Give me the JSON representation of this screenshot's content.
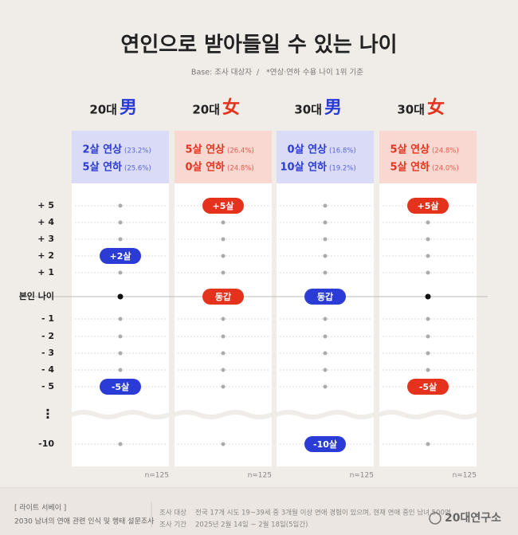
{
  "header": {
    "title": "연인으로 받아들일 수 있는 나이",
    "base": "Base: 조사 대상자",
    "note": "*연상·연하 수용 나이 1위 기준"
  },
  "rows": [
    {
      "value": 5,
      "label": "+ 5"
    },
    {
      "value": 4,
      "label": "+ 4"
    },
    {
      "value": 3,
      "label": "+ 3"
    },
    {
      "value": 2,
      "label": "+ 2"
    },
    {
      "value": 1,
      "label": "+ 1"
    },
    {
      "value": 0,
      "label": "본인 나이"
    },
    {
      "value": -1,
      "label": "- 1"
    },
    {
      "value": -2,
      "label": "- 2"
    },
    {
      "value": -3,
      "label": "- 3"
    },
    {
      "value": -4,
      "label": "- 4"
    },
    {
      "value": -5,
      "label": "- 5"
    },
    {
      "value": -10,
      "label": "-10"
    }
  ],
  "ellipsis": "⋮",
  "columns": [
    {
      "age": "20대",
      "gender": "男",
      "color": "#2b3bd6",
      "box": "#dadbf6",
      "older": "2살 연상",
      "older_pct": "(23.2%)",
      "younger": "5살 연하",
      "younger_pct": "(25.6%)",
      "badges": [
        {
          "value": 2,
          "label": "+2살"
        },
        {
          "value": -5,
          "label": "-5살"
        }
      ],
      "n": "n=125"
    },
    {
      "age": "20대",
      "gender": "女",
      "color": "#e5321d",
      "box": "#f8d8d1",
      "older": "5살 연상",
      "older_pct": "(26.4%)",
      "younger": "0살 연하",
      "younger_pct": "(24.8%)",
      "badges": [
        {
          "value": 5,
          "label": "+5살"
        },
        {
          "value": 0,
          "label": "동갑"
        }
      ],
      "n": "n=125"
    },
    {
      "age": "30대",
      "gender": "男",
      "color": "#2b3bd6",
      "box": "#dadbf6",
      "older": "0살 연상",
      "older_pct": "(16.8%)",
      "younger": "10살 연하",
      "younger_pct": "(19.2%)",
      "badges": [
        {
          "value": 0,
          "label": "동갑"
        },
        {
          "value": -10,
          "label": "-10살"
        }
      ],
      "n": "n=125"
    },
    {
      "age": "30대",
      "gender": "女",
      "color": "#e5321d",
      "box": "#f8d8d1",
      "older": "5살 연상",
      "older_pct": "(24.8%)",
      "younger": "5살 연하",
      "younger_pct": "(24.0%)",
      "badges": [
        {
          "value": 5,
          "label": "+5살"
        },
        {
          "value": -5,
          "label": "-5살"
        }
      ],
      "n": "n=125"
    }
  ],
  "footer": {
    "series": "[ 라이트 서베이 ]",
    "survey": "2030 남녀의 연애 관련 인식 및 행태 설문조사",
    "target_label": "조사 대상",
    "target": "전국 17개 시도 19~39세 중 3개월 이상 연애 경험이 있으며, 현재 연애 중인 남녀 500명",
    "period_label": "조사 기간",
    "period": "2025년 2월 14일 ~ 2월 18일(5일간)",
    "logo": "20대연구소"
  }
}
